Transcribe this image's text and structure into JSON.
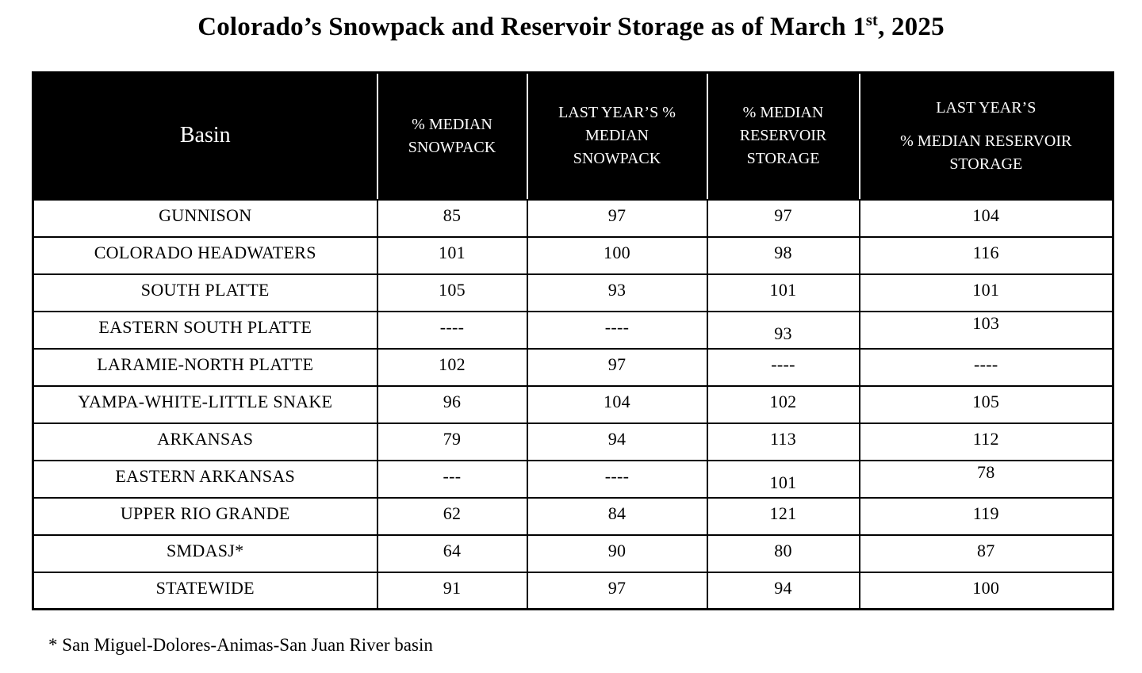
{
  "page": {
    "title": {
      "prefix": "Colorado’s Snowpack and Reservoir Storage as of March 1",
      "superscript": "st",
      "suffix": ", 2025"
    },
    "footnote": "* San Miguel-Dolores-Animas-San Juan River basin"
  },
  "colors": {
    "header_bg": "#000000",
    "header_text": "#ffffff",
    "body_bg": "#ffffff",
    "body_text": "#000000",
    "border": "#000000"
  },
  "table": {
    "headers": [
      {
        "label": "Basin",
        "lines": [
          "Basin"
        ]
      },
      {
        "label": "% MEDIAN SNOWPACK",
        "lines": [
          "% MEDIAN",
          "SNOWPACK"
        ]
      },
      {
        "label": "LAST YEAR’S % MEDIAN SNOWPACK",
        "lines": [
          "LAST YEAR’S %",
          "MEDIAN",
          "SNOWPACK"
        ]
      },
      {
        "label": "% MEDIAN RESERVOIR STORAGE",
        "lines": [
          "% MEDIAN",
          "RESERVOIR",
          "STORAGE"
        ]
      },
      {
        "label": "LAST YEAR’S % MEDIAN RESERVOIR STORAGE",
        "lines": [
          "LAST YEAR’S",
          "% MEDIAN RESERVOIR",
          "STORAGE"
        ]
      }
    ],
    "rows": [
      {
        "basin": "GUNNISON",
        "values": [
          "85",
          "97",
          "97",
          "104"
        ]
      },
      {
        "basin": "COLORADO HEADWATERS",
        "values": [
          "101",
          "100",
          "98",
          "116"
        ]
      },
      {
        "basin": "SOUTH PLATTE",
        "values": [
          "105",
          "93",
          "101",
          "101"
        ]
      },
      {
        "basin": "EASTERN SOUTH PLATTE",
        "values": [
          "----",
          "----",
          "93",
          "103"
        ]
      },
      {
        "basin": "LARAMIE-NORTH PLATTE",
        "values": [
          "102",
          "97",
          "----",
          "----"
        ]
      },
      {
        "basin": "YAMPA-WHITE-LITTLE SNAKE",
        "values": [
          "96",
          "104",
          "102",
          "105"
        ]
      },
      {
        "basin": "ARKANSAS",
        "values": [
          "79",
          "94",
          "113",
          "112"
        ]
      },
      {
        "basin": "EASTERN ARKANSAS",
        "values": [
          "---",
          "----",
          "101",
          "78"
        ]
      },
      {
        "basin": "UPPER RIO GRANDE",
        "values": [
          "62",
          "84",
          "121",
          "119"
        ]
      },
      {
        "basin": "SMDASJ*",
        "values": [
          "64",
          "90",
          "80",
          "87"
        ]
      },
      {
        "basin": "STATEWIDE",
        "values": [
          "91",
          "97",
          "94",
          "100"
        ]
      }
    ]
  },
  "chart_data": {
    "type": "table",
    "title": "Colorado’s Snowpack and Reservoir Storage as of March 1st, 2025",
    "missing_marker": "----",
    "categories": [
      "GUNNISON",
      "COLORADO HEADWATERS",
      "SOUTH PLATTE",
      "EASTERN SOUTH PLATTE",
      "LARAMIE-NORTH PLATTE",
      "YAMPA-WHITE-LITTLE SNAKE",
      "ARKANSAS",
      "EASTERN ARKANSAS",
      "UPPER RIO GRANDE",
      "SMDASJ*",
      "STATEWIDE"
    ],
    "series": [
      {
        "name": "% MEDIAN SNOWPACK",
        "values": [
          85,
          101,
          105,
          null,
          102,
          96,
          79,
          null,
          62,
          64,
          91
        ]
      },
      {
        "name": "LAST YEAR’S % MEDIAN SNOWPACK",
        "values": [
          97,
          100,
          93,
          null,
          97,
          104,
          94,
          null,
          84,
          90,
          97
        ]
      },
      {
        "name": "% MEDIAN RESERVOIR STORAGE",
        "values": [
          97,
          98,
          101,
          93,
          null,
          102,
          113,
          101,
          121,
          80,
          94
        ]
      },
      {
        "name": "LAST YEAR’S % MEDIAN RESERVOIR STORAGE",
        "values": [
          104,
          116,
          101,
          103,
          null,
          105,
          112,
          78,
          119,
          87,
          100
        ]
      }
    ],
    "footnote": "* San Miguel-Dolores-Animas-San Juan River basin"
  }
}
